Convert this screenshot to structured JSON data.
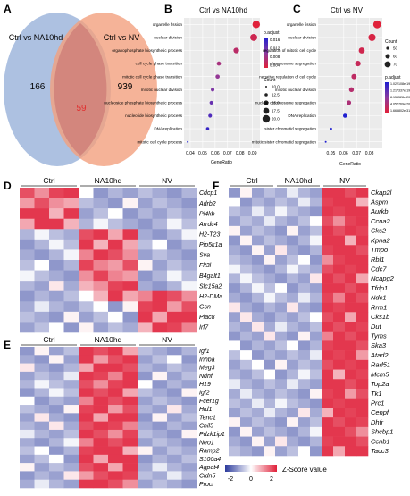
{
  "panels": {
    "A": {
      "letter": "A",
      "left_set": "Ctrl vs NA10hd",
      "right_set": "Ctrl vs NV",
      "left_only": "166",
      "overlap": "59",
      "right_only": "939",
      "colors": {
        "left": "#9fb6dc",
        "right": "#f2a07e",
        "overlap": "#c56b6b",
        "overlap_text": "#e03030"
      }
    },
    "B": {
      "letter": "B",
      "title": "Ctrl vs NA10hd",
      "xlabel": "GeneRatio",
      "xticks": [
        "0.04",
        "0.05",
        "0.06",
        "0.07",
        "0.08",
        "0.09"
      ],
      "legend_padj_title": "p.adjust",
      "padj_ticks": [
        "0.016",
        "0.012",
        "0.008",
        "0.004"
      ],
      "legend_count_title": "Count",
      "count_ticks": [
        "10.0",
        "12.5",
        "15.0",
        "17.5",
        "20.0"
      ]
    },
    "C": {
      "letter": "C",
      "title": "Ctrl vs NV",
      "xlabel": "GeneRatio",
      "xticks": [
        "0.05",
        "0.06",
        "0.07",
        "0.08"
      ],
      "legend_count_title": "Count",
      "count_ticks": [
        "50",
        "60",
        "70"
      ],
      "legend_padj_title": "p.adjust",
      "padj_ticks": [
        "1.022108e-19",
        "1.217337e-19",
        "8.155528e-20",
        "4.057769e-20",
        "1.665802e-31"
      ]
    },
    "D": {
      "letter": "D",
      "groups": [
        "Ctrl",
        "NA10hd",
        "NV"
      ]
    },
    "E": {
      "letter": "E",
      "groups": [
        "Ctrl",
        "NA10hd",
        "NV"
      ]
    },
    "F": {
      "letter": "F",
      "groups": [
        "Ctrl",
        "NA10hd",
        "NV"
      ],
      "zscore_label": "Z-Score value",
      "zscore_ticks": [
        "-2",
        "0",
        "2"
      ]
    }
  },
  "chart_data": [
    {
      "panel": "B",
      "type": "scatter",
      "title": "Ctrl vs NA10hd",
      "xlabel": "GeneRatio",
      "terms": [
        "organelle fission",
        "nuclear division",
        "organophosphate biosynthetic process",
        "cell cycle phase transition",
        "mitotic cell cycle phase transition",
        "mitotic nuclear division",
        "nucleoside phosphate biosynthetic process",
        "nucleotide biosynthetic process",
        "DNA replication",
        "mitotic cell cycle process"
      ],
      "gene_ratio": [
        0.093,
        0.091,
        0.077,
        0.063,
        0.062,
        0.058,
        0.057,
        0.056,
        0.054,
        0.038
      ],
      "count": [
        20,
        19,
        16,
        13,
        13,
        12,
        12,
        12,
        11,
        8
      ],
      "p_adjust": [
        0.001,
        0.001,
        0.003,
        0.006,
        0.007,
        0.009,
        0.012,
        0.013,
        0.015,
        0.017
      ],
      "xlim": [
        0.035,
        0.096
      ]
    },
    {
      "panel": "C",
      "type": "scatter",
      "title": "Ctrl vs NV",
      "xlabel": "GeneRatio",
      "terms": [
        "organelle fission",
        "nuclear division",
        "regulation of mitotic cell cycle",
        "chromosome segregation",
        "negative regulation of cell cycle",
        "mitotic nuclear division",
        "nuclear chromosome segregation",
        "DNA replication",
        "sister chromatid segregation",
        "mitotic sister chromatid segregation"
      ],
      "gene_ratio": [
        0.086,
        0.082,
        0.074,
        0.071,
        0.068,
        0.066,
        0.064,
        0.061,
        0.05,
        0.046
      ],
      "count": [
        78,
        74,
        67,
        64,
        62,
        60,
        58,
        55,
        46,
        42
      ],
      "p_adjust_rank": [
        1,
        1,
        2,
        2,
        3,
        3,
        4,
        5,
        8,
        9
      ],
      "xlim": [
        0.04,
        0.09
      ]
    },
    {
      "panel": "D",
      "type": "heatmap",
      "genes": [
        "Cdcp1",
        "Adrb2",
        "Pi4kb",
        "Arrdc4",
        "H2-T23",
        "Pip5k1a",
        "Sva",
        "Flt3l",
        "B4galt1",
        "Slc15a2",
        "H2-DMa",
        "Gsn",
        "Plac8",
        "Irf7"
      ],
      "columns": 12,
      "matrix": [
        [
          2,
          1,
          2,
          2,
          0,
          -1,
          -1,
          -1,
          -1,
          -1,
          -1,
          -1
        ],
        [
          1,
          2,
          1,
          1,
          -1,
          -1,
          -1,
          0,
          -1,
          -1,
          -1,
          -1
        ],
        [
          2,
          2,
          1,
          2,
          -1,
          -1,
          0,
          -1,
          -1,
          -1,
          -1,
          -1
        ],
        [
          1,
          2,
          2,
          1,
          -1,
          0,
          -1,
          -1,
          -1,
          -1,
          0,
          -1
        ],
        [
          -1,
          0,
          -1,
          -1,
          2,
          2,
          1,
          2,
          -1,
          -1,
          -1,
          0
        ],
        [
          -1,
          -1,
          0,
          -1,
          2,
          1,
          2,
          1,
          -1,
          0,
          -1,
          -1
        ],
        [
          -1,
          -1,
          -1,
          0,
          1,
          2,
          2,
          1,
          -1,
          -1,
          -1,
          -1
        ],
        [
          -1,
          0,
          -1,
          -1,
          2,
          1,
          1,
          2,
          0,
          -1,
          -1,
          -1
        ],
        [
          0,
          -1,
          -1,
          -1,
          1,
          2,
          1,
          1,
          -1,
          -1,
          0,
          -1
        ],
        [
          -1,
          -1,
          0,
          -1,
          1,
          1,
          2,
          2,
          -1,
          -1,
          -1,
          0
        ],
        [
          -1,
          -1,
          -1,
          -1,
          0,
          1,
          2,
          1,
          1,
          2,
          2,
          1
        ],
        [
          -1,
          0,
          -1,
          -1,
          -1,
          0,
          -1,
          0,
          2,
          2,
          1,
          2
        ],
        [
          -1,
          -1,
          -1,
          0,
          -1,
          -1,
          0,
          -1,
          2,
          1,
          2,
          2
        ],
        [
          -1,
          -1,
          0,
          -1,
          0,
          -1,
          -1,
          -1,
          1,
          2,
          2,
          1
        ]
      ]
    },
    {
      "panel": "E",
      "type": "heatmap",
      "genes": [
        "Igf1",
        "Inhba",
        "Meg3",
        "Ndnf",
        "H19",
        "Igf2",
        "Fcer1g",
        "Hid1",
        "Tenc1",
        "Chil5",
        "Pdzk1ip1",
        "Neo1",
        "Ramp2",
        "S100a4",
        "Agpat4",
        "Cldn5",
        "Procr"
      ],
      "columns": 12,
      "matrix": [
        [
          -1,
          0,
          -1,
          -1,
          2,
          2,
          2,
          1,
          -1,
          -1,
          -1,
          -1
        ],
        [
          -1,
          -1,
          0,
          -1,
          2,
          1,
          2,
          2,
          -1,
          -1,
          0,
          -1
        ],
        [
          0,
          -1,
          -1,
          -1,
          1,
          2,
          2,
          2,
          -1,
          -1,
          -1,
          -1
        ],
        [
          -1,
          -1,
          -1,
          0,
          2,
          2,
          1,
          2,
          -1,
          0,
          -1,
          -1
        ],
        [
          -1,
          0,
          -1,
          -1,
          2,
          1,
          2,
          2,
          0,
          -1,
          -1,
          -1
        ],
        [
          -1,
          -1,
          0,
          -1,
          2,
          2,
          2,
          1,
          -1,
          -1,
          -1,
          0
        ],
        [
          0,
          -1,
          -1,
          -1,
          1,
          2,
          2,
          2,
          -1,
          -1,
          -1,
          -1
        ],
        [
          -1,
          -1,
          -1,
          0,
          2,
          2,
          1,
          2,
          -1,
          -1,
          0,
          -1
        ],
        [
          -1,
          0,
          -1,
          -1,
          2,
          1,
          2,
          2,
          -1,
          0,
          -1,
          -1
        ],
        [
          -1,
          -1,
          0,
          -1,
          2,
          2,
          2,
          1,
          -1,
          -1,
          -1,
          -1
        ],
        [
          0,
          -1,
          -1,
          -1,
          2,
          2,
          1,
          2,
          -1,
          -1,
          -1,
          0
        ],
        [
          -1,
          -1,
          -1,
          0,
          1,
          2,
          2,
          2,
          -1,
          -1,
          -1,
          -1
        ],
        [
          -1,
          0,
          -1,
          -1,
          2,
          2,
          2,
          1,
          0,
          -1,
          -1,
          -1
        ],
        [
          -1,
          -1,
          0,
          -1,
          2,
          1,
          2,
          2,
          -1,
          -1,
          -1,
          -1
        ],
        [
          0,
          -1,
          -1,
          -1,
          2,
          2,
          1,
          2,
          -1,
          0,
          -1,
          -1
        ],
        [
          -1,
          -1,
          -1,
          0,
          1,
          2,
          2,
          2,
          -1,
          -1,
          0,
          -1
        ],
        [
          -1,
          0,
          -1,
          -1,
          2,
          2,
          2,
          1,
          -1,
          -1,
          -1,
          -1
        ]
      ]
    },
    {
      "panel": "F",
      "type": "heatmap",
      "genes": [
        "Ckap2l",
        "Aspm",
        "Aurkb",
        "Ccna2",
        "Cks2",
        "Kpna2",
        "Tmpo",
        "Rbl1",
        "Cdc7",
        "Ncapg2",
        "Tfdp1",
        "Ndc1",
        "Rrm1",
        "Cks1b",
        "Dut",
        "Tyms",
        "Ska3",
        "Atad2",
        "Rad51",
        "Mcm5",
        "Top2a",
        "Tk1",
        "Prc1",
        "Cenpf",
        "Dhfr",
        "Shcbp1",
        "Ccnb1",
        "Tacc3"
      ],
      "columns": 12,
      "matrix": [
        [
          -1,
          0,
          -1,
          -1,
          -1,
          0,
          -1,
          -1,
          2,
          2,
          2,
          2
        ],
        [
          0,
          -1,
          -1,
          -1,
          -1,
          -1,
          0,
          -1,
          2,
          2,
          2,
          1
        ],
        [
          -1,
          -1,
          0,
          -1,
          0,
          -1,
          -1,
          -1,
          2,
          2,
          2,
          2
        ],
        [
          -1,
          -1,
          -1,
          0,
          -1,
          -1,
          -1,
          0,
          2,
          1,
          2,
          2
        ],
        [
          0,
          -1,
          -1,
          -1,
          -1,
          0,
          -1,
          -1,
          2,
          2,
          2,
          2
        ],
        [
          -1,
          0,
          -1,
          -1,
          -1,
          -1,
          -1,
          0,
          2,
          2,
          1,
          2
        ],
        [
          -1,
          -1,
          0,
          -1,
          0,
          -1,
          -1,
          -1,
          2,
          2,
          2,
          2
        ],
        [
          -1,
          -1,
          -1,
          0,
          -1,
          -1,
          0,
          -1,
          1,
          2,
          2,
          2
        ],
        [
          0,
          -1,
          -1,
          -1,
          -1,
          0,
          -1,
          -1,
          2,
          2,
          2,
          2
        ],
        [
          -1,
          0,
          -1,
          -1,
          -1,
          -1,
          -1,
          0,
          2,
          2,
          2,
          1
        ],
        [
          -1,
          -1,
          0,
          -1,
          0,
          -1,
          -1,
          -1,
          2,
          2,
          2,
          2
        ],
        [
          -1,
          -1,
          -1,
          0,
          -1,
          -1,
          0,
          -1,
          2,
          1,
          2,
          2
        ],
        [
          0,
          -1,
          -1,
          -1,
          -1,
          0,
          -1,
          -1,
          2,
          2,
          2,
          2
        ],
        [
          -1,
          0,
          -1,
          -1,
          -1,
          -1,
          -1,
          0,
          2,
          2,
          1,
          2
        ],
        [
          -1,
          -1,
          0,
          -1,
          0,
          -1,
          -1,
          -1,
          2,
          2,
          2,
          2
        ],
        [
          -1,
          -1,
          -1,
          0,
          -1,
          -1,
          0,
          -1,
          1,
          2,
          2,
          2
        ],
        [
          0,
          -1,
          -1,
          -1,
          -1,
          0,
          -1,
          -1,
          2,
          2,
          2,
          2
        ],
        [
          -1,
          0,
          -1,
          -1,
          -1,
          -1,
          -1,
          0,
          2,
          2,
          2,
          1
        ],
        [
          -1,
          -1,
          0,
          -1,
          0,
          -1,
          -1,
          -1,
          2,
          2,
          2,
          2
        ],
        [
          -1,
          -1,
          -1,
          0,
          -1,
          -1,
          0,
          -1,
          2,
          1,
          2,
          2
        ],
        [
          0,
          -1,
          -1,
          -1,
          -1,
          0,
          -1,
          -1,
          2,
          2,
          2,
          2
        ],
        [
          -1,
          0,
          -1,
          -1,
          -1,
          -1,
          -1,
          0,
          2,
          2,
          1,
          2
        ],
        [
          -1,
          -1,
          0,
          -1,
          0,
          -1,
          -1,
          -1,
          2,
          2,
          2,
          2
        ],
        [
          -1,
          -1,
          -1,
          0,
          -1,
          -1,
          0,
          -1,
          1,
          2,
          2,
          2
        ],
        [
          0,
          -1,
          -1,
          -1,
          -1,
          0,
          -1,
          -1,
          2,
          2,
          2,
          2
        ],
        [
          -1,
          0,
          -1,
          -1,
          -1,
          -1,
          -1,
          0,
          2,
          2,
          2,
          1
        ],
        [
          -1,
          -1,
          0,
          -1,
          0,
          -1,
          -1,
          -1,
          2,
          2,
          2,
          2
        ],
        [
          -1,
          -1,
          -1,
          0,
          -1,
          -1,
          0,
          -1,
          2,
          1,
          2,
          2
        ]
      ]
    }
  ]
}
